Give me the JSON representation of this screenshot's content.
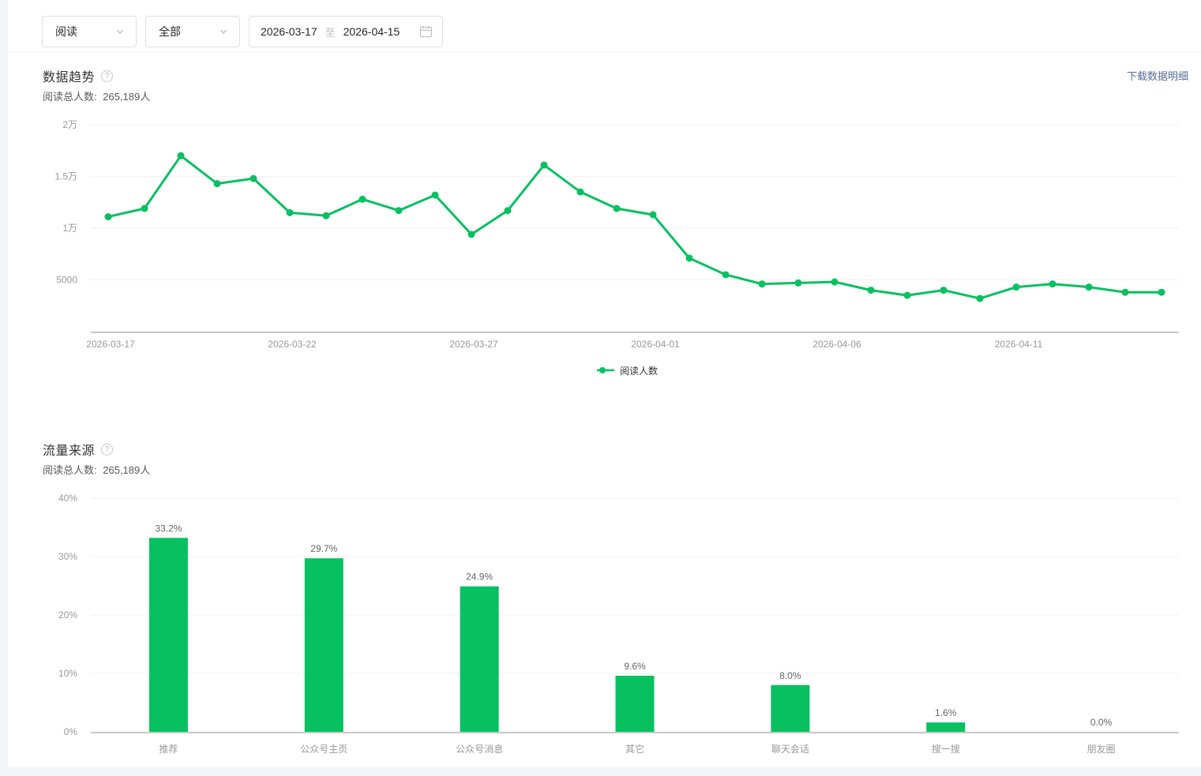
{
  "toolbar": {
    "metric_select": "阅读",
    "scope_select": "全部",
    "date_start": "2026-03-17",
    "date_separator": "至",
    "date_end": "2026-04-15"
  },
  "trend_section": {
    "title": "数据趋势",
    "help_icon": "?",
    "total_label": "阅读总人数:",
    "total_value": "265,189人",
    "download_link": "下载数据明细",
    "legend_label": "阅读人数"
  },
  "source_section": {
    "title": "流量来源",
    "help_icon": "?",
    "total_label": "阅读总人数:",
    "total_value": "265,189人"
  },
  "colors": {
    "series_green": "#07C160",
    "link_blue": "#576b95",
    "grid_line": "#f2f2f2",
    "axis_line": "#c8c8c8",
    "tick_text": "#999999",
    "bar_value_text": "#666666"
  },
  "chart_data": [
    {
      "type": "line",
      "title": "数据趋势",
      "x": [
        "2026-03-17",
        "2026-03-18",
        "2026-03-19",
        "2026-03-20",
        "2026-03-21",
        "2026-03-22",
        "2026-03-23",
        "2026-03-24",
        "2026-03-25",
        "2026-03-26",
        "2026-03-27",
        "2026-03-28",
        "2026-03-29",
        "2026-03-30",
        "2026-03-31",
        "2026-04-01",
        "2026-04-02",
        "2026-04-03",
        "2026-04-04",
        "2026-04-05",
        "2026-04-06",
        "2026-04-07",
        "2026-04-08",
        "2026-04-09",
        "2026-04-10",
        "2026-04-11",
        "2026-04-12",
        "2026-04-13",
        "2026-04-14",
        "2026-04-15"
      ],
      "series": [
        {
          "name": "阅读人数",
          "values": [
            11100,
            11900,
            17000,
            14300,
            14800,
            11500,
            11200,
            12800,
            11700,
            13200,
            9400,
            11700,
            16100,
            13500,
            11900,
            11300,
            7100,
            5500,
            4600,
            4700,
            4800,
            4000,
            3500,
            4000,
            3200,
            4300,
            4600,
            4300,
            3800,
            3800
          ]
        }
      ],
      "x_tick_every": 5,
      "x_tick_labels": [
        "2026-03-17",
        "2026-03-22",
        "2026-03-27",
        "2026-04-01",
        "2026-04-06",
        "2026-04-11"
      ],
      "y_ticks": [
        {
          "label": "5000",
          "value": 5000
        },
        {
          "label": "1万",
          "value": 10000
        },
        {
          "label": "1.5万",
          "value": 15000
        },
        {
          "label": "2万",
          "value": 20000
        }
      ],
      "ylim": [
        0,
        20000
      ],
      "grid": true,
      "legend_position": "bottom"
    },
    {
      "type": "bar",
      "title": "流量来源",
      "categories": [
        "推荐",
        "公众号主页",
        "公众号消息",
        "其它",
        "聊天会话",
        "搜一搜",
        "朋友圈"
      ],
      "values": [
        33.2,
        29.7,
        24.9,
        9.6,
        8.0,
        1.6,
        0.0
      ],
      "value_labels": [
        "33.2%",
        "29.7%",
        "24.9%",
        "9.6%",
        "8.0%",
        "1.6%",
        "0.0%"
      ],
      "y_ticks": [
        {
          "label": "0%",
          "value": 0
        },
        {
          "label": "10%",
          "value": 10
        },
        {
          "label": "20%",
          "value": 20
        },
        {
          "label": "30%",
          "value": 30
        },
        {
          "label": "40%",
          "value": 40
        }
      ],
      "ylim": [
        0,
        40
      ],
      "grid": true,
      "legend_position": "none"
    }
  ]
}
